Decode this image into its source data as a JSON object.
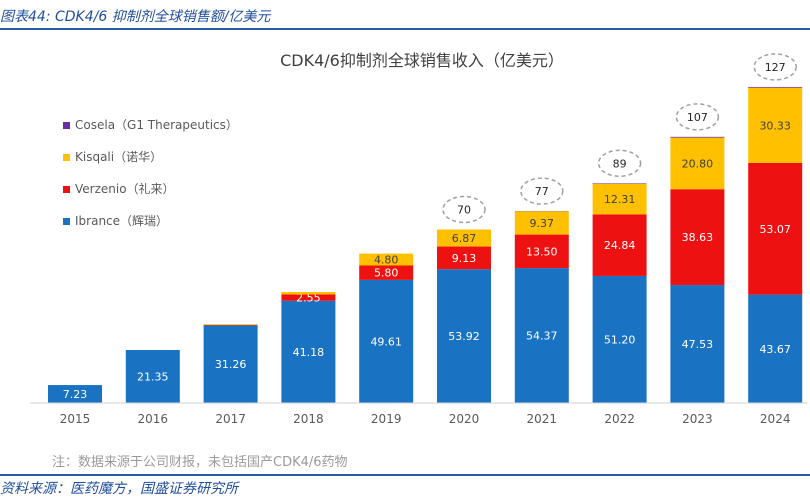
{
  "figure_title": "图表44:  CDK4/6 抑制剂全球销售额/亿美元",
  "source": "资料来源：医药魔方，国盛证券研究所",
  "note": "注：数据来源于公司财报，未包括国产CDK4/6药物",
  "colors": {
    "Ibrance": "#1a72c3",
    "Verzenio": "#ee1111",
    "Kisqali": "#ffc000",
    "Cosela": "#6a2fa0",
    "frame": "#1f4e9c"
  },
  "chart_data": {
    "type": "bar",
    "stacked": true,
    "title": "CDK4/6抑制剂全球销售收入（亿美元）",
    "xlabel": "",
    "ylabel": "",
    "ylim": [
      0,
      135
    ],
    "categories": [
      "2015",
      "2016",
      "2017",
      "2018",
      "2019",
      "2020",
      "2021",
      "2022",
      "2023",
      "2024"
    ],
    "series": [
      {
        "name": "Ibrance",
        "legend": "Ibrance（辉瑞）",
        "values": [
          7.23,
          21.35,
          31.26,
          41.18,
          49.61,
          53.92,
          54.37,
          51.2,
          47.53,
          43.67
        ],
        "labels": [
          "7.23",
          "21.35",
          "31.26",
          "41.18",
          "49.61",
          "53.92",
          "54.37",
          "51.20",
          "47.53",
          "43.67"
        ]
      },
      {
        "name": "Verzenio",
        "legend": "Verzenio（礼来）",
        "values": [
          0,
          0,
          0.2,
          2.55,
          5.8,
          9.13,
          13.5,
          24.84,
          38.63,
          53.07
        ],
        "labels": [
          "",
          "",
          "",
          "2.55",
          "5.80",
          "9.13",
          "13.50",
          "24.84",
          "38.63",
          "53.07"
        ]
      },
      {
        "name": "Kisqali",
        "legend": "Kisqali（诺华）",
        "values": [
          0,
          0,
          0.3,
          1.0,
          4.8,
          6.87,
          9.37,
          12.31,
          20.8,
          30.33
        ],
        "labels": [
          "",
          "",
          "",
          "",
          "4.80",
          "6.87",
          "9.37",
          "12.31",
          "20.80",
          "30.33"
        ]
      },
      {
        "name": "Cosela",
        "legend": "Cosela（G1 Therapeutics）",
        "values": [
          0,
          0,
          0,
          0,
          0,
          0,
          0.1,
          0.2,
          0.3,
          0.3
        ],
        "labels": [
          "",
          "",
          "",
          "",
          "",
          "",
          "",
          "",
          "",
          ""
        ]
      }
    ],
    "totals": [
      null,
      null,
      null,
      null,
      null,
      70,
      77,
      89,
      107,
      127
    ],
    "legend_position": "top-left",
    "grid": false
  }
}
